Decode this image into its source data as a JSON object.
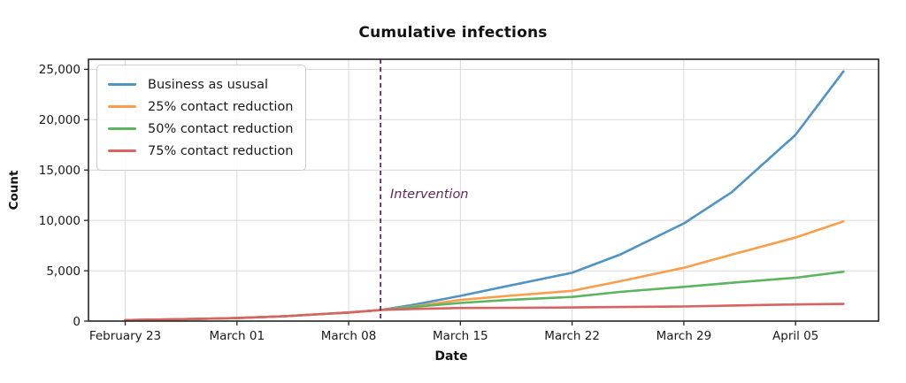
{
  "figure": {
    "title": "Cumulative infections",
    "xlabel": "Date",
    "ylabel": "Count"
  },
  "chart_data": {
    "type": "line",
    "title": "Cumulative infections",
    "xlabel": "Date",
    "ylabel": "Count",
    "grid": true,
    "legend_position": "upper left",
    "x_unit": "days since February 23",
    "x_range": [
      -2.3,
      47.2
    ],
    "y_range": [
      0,
      26000
    ],
    "x_ticks": [
      {
        "day": 0,
        "label": "February 23"
      },
      {
        "day": 7,
        "label": "March 01"
      },
      {
        "day": 14,
        "label": "March 08"
      },
      {
        "day": 21,
        "label": "March 15"
      },
      {
        "day": 28,
        "label": "March 22"
      },
      {
        "day": 35,
        "label": "March 29"
      },
      {
        "day": 42,
        "label": "April 05"
      }
    ],
    "y_ticks": [
      {
        "value": 0,
        "label": "0"
      },
      {
        "value": 5000,
        "label": "5,000"
      },
      {
        "value": 10000,
        "label": "10,000"
      },
      {
        "value": 15000,
        "label": "15,000"
      },
      {
        "value": 20000,
        "label": "20,000"
      },
      {
        "value": 25000,
        "label": "25,000"
      }
    ],
    "annotation": {
      "label": "Intervention",
      "day": 16,
      "date": "March 10",
      "style": "dashed-vertical-line",
      "color": "#5e2960"
    },
    "x_days": [
      0,
      3,
      7,
      10,
      14,
      16,
      18,
      21,
      24,
      28,
      31,
      35,
      38,
      42,
      45
    ],
    "series": [
      {
        "name": "Business as ususal",
        "color": "#4f94c4",
        "values": [
          100,
          170,
          300,
          480,
          850,
          1100,
          1600,
          2500,
          3500,
          4800,
          6600,
          9700,
          12800,
          18500,
          24800
        ]
      },
      {
        "name": "25% contact reduction",
        "color": "#fb9e4c",
        "values": [
          100,
          170,
          300,
          480,
          850,
          1100,
          1450,
          2100,
          2500,
          3000,
          3950,
          5300,
          6600,
          8300,
          9900
        ]
      },
      {
        "name": "50% contact reduction",
        "color": "#5cb55f",
        "values": [
          100,
          170,
          300,
          480,
          850,
          1100,
          1400,
          1800,
          2100,
          2400,
          2900,
          3400,
          3800,
          4300,
          4900
        ]
      },
      {
        "name": "75% contact reduction",
        "color": "#d96262",
        "values": [
          100,
          170,
          300,
          480,
          850,
          1100,
          1200,
          1300,
          1320,
          1350,
          1400,
          1450,
          1550,
          1650,
          1700
        ]
      }
    ],
    "style": {
      "grid_color": "#d9d9d9",
      "spine_color": "#262626",
      "tick_label_color": "#1a1a1a",
      "background": "#ffffff"
    }
  }
}
